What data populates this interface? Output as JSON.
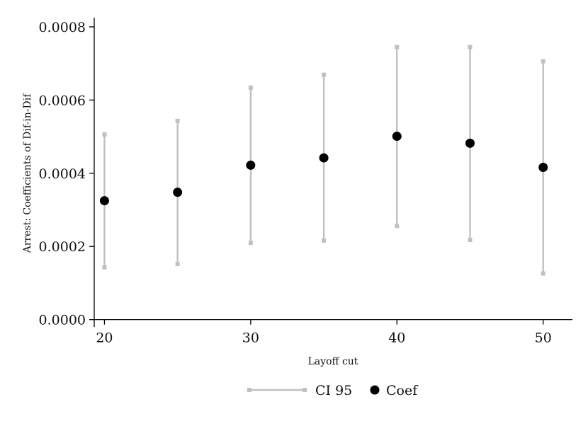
{
  "chart_data": {
    "type": "scatter",
    "title": "",
    "xlabel": "Layoff cut",
    "ylabel": "Arrest: Coefficients of Dif-in-Dif",
    "xlim": [
      19.3,
      52
    ],
    "ylim": [
      -2e-05,
      0.000825
    ],
    "x_ticks": [
      20,
      30,
      40,
      50
    ],
    "x_tick_labels": [
      "20",
      "30",
      "40",
      "50"
    ],
    "y_ticks": [
      0,
      0.0002,
      0.0004,
      0.0006,
      0.0008
    ],
    "y_tick_labels": [
      "0.0000",
      "0.0002",
      "0.0004",
      "0.0006",
      "0.0008"
    ],
    "x": [
      20,
      25,
      30,
      35,
      40,
      45,
      50
    ],
    "series": [
      {
        "name": "CI 95",
        "kind": "errorbar",
        "color": "#c0c0c0",
        "low": [
          0.000143,
          0.000152,
          0.00021,
          0.000216,
          0.000256,
          0.000218,
          0.000126
        ],
        "high": [
          0.000506,
          0.000543,
          0.000634,
          0.000669,
          0.000745,
          0.000745,
          0.000706
        ]
      },
      {
        "name": "Coef",
        "kind": "point",
        "color": "#000000",
        "values": [
          0.000325,
          0.000348,
          0.000422,
          0.000442,
          0.000501,
          0.000482,
          0.000416
        ]
      }
    ],
    "grid": false,
    "legend_position": "bottom-center"
  }
}
